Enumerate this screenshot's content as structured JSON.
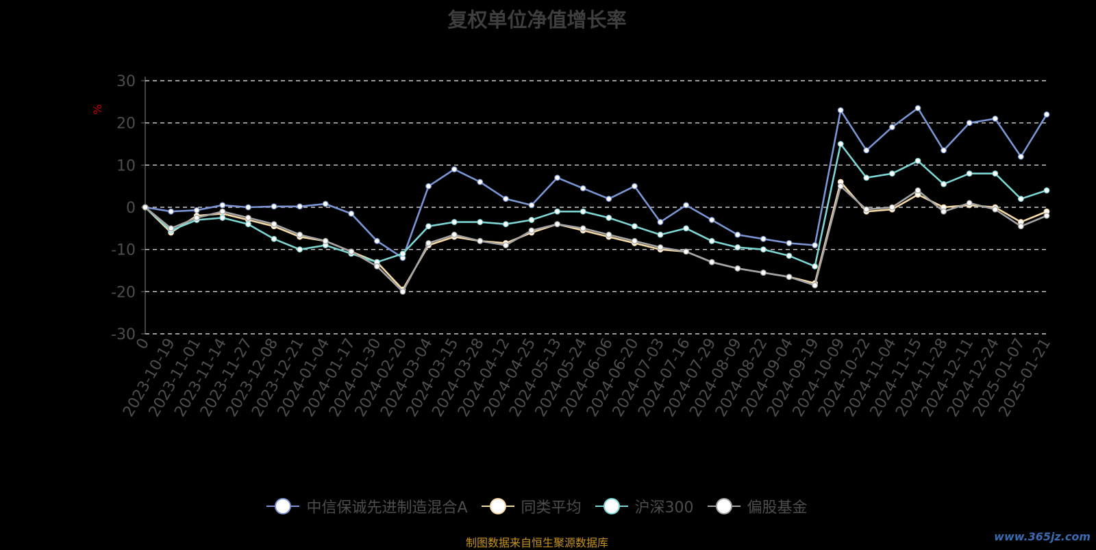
{
  "title": "复权单位净值增长率",
  "source_note": "制图数据来自恒生聚源数据库",
  "watermark": "www.365jz.com",
  "colors": {
    "background": "#000000",
    "grid": "#d0d0d0",
    "axis": "#5a5a5a",
    "tick_text": "#4e4e4e",
    "ylabel": "#cc0000"
  },
  "chart_data": {
    "type": "line",
    "title": "复权单位净值增长率",
    "ylabel": "%",
    "ylim": [
      -30,
      30
    ],
    "yticks": [
      30,
      20,
      10,
      0,
      -10,
      -20,
      -30
    ],
    "grid": true,
    "legend_position": "bottom",
    "x": [
      "0",
      "2023-10-19",
      "2023-11-01",
      "2023-11-14",
      "2023-11-27",
      "2023-12-08",
      "2023-12-21",
      "2024-01-04",
      "2024-01-17",
      "2024-01-30",
      "2024-02-20",
      "2024-03-04",
      "2024-03-15",
      "2024-03-28",
      "2024-04-12",
      "2024-04-25",
      "2024-05-13",
      "2024-05-24",
      "2024-06-06",
      "2024-06-20",
      "2024-07-03",
      "2024-07-16",
      "2024-07-29",
      "2024-08-09",
      "2024-08-22",
      "2024-09-04",
      "2024-09-19",
      "2024-10-09",
      "2024-10-22",
      "2024-11-04",
      "2024-11-15",
      "2024-11-28",
      "2024-12-11",
      "2024-12-24",
      "2025-01-07",
      "2025-01-21"
    ],
    "series": [
      {
        "name": "中信保诚先进制造混合A",
        "color": "#7b96d4",
        "values": [
          0,
          -1,
          -0.7,
          0.5,
          0,
          0.2,
          0.2,
          0.8,
          -1.5,
          -8,
          -12,
          5,
          9,
          6,
          2,
          0.5,
          7,
          4.5,
          2,
          5,
          -3.5,
          0.5,
          -3,
          -6.5,
          -7.5,
          -8.5,
          -9,
          23,
          13.5,
          19,
          23.5,
          13.5,
          20,
          21,
          12,
          22
        ]
      },
      {
        "name": "同类平均",
        "color": "#f5d9a6",
        "values": [
          0,
          -6,
          -2,
          -1.5,
          -3,
          -4.5,
          -7,
          -8,
          -10.5,
          -13,
          -19.5,
          -9,
          -7,
          -8,
          -8.5,
          -6,
          -4,
          -5.5,
          -7,
          -8.5,
          -10,
          -10.5,
          -13,
          -14.5,
          -15.5,
          -16.5,
          -18,
          6,
          -1,
          -0.5,
          3,
          0,
          0.5,
          0,
          -3.5,
          -1
        ]
      },
      {
        "name": "沪深300",
        "color": "#7ed6d4",
        "values": [
          0,
          -5.5,
          -3,
          -2.5,
          -4,
          -7.5,
          -10,
          -9,
          -11,
          -13,
          -11,
          -4.5,
          -3.5,
          -3.5,
          -4,
          -3,
          -1,
          -1,
          -2.5,
          -4.5,
          -6.5,
          -5,
          -8,
          -9.5,
          -10,
          -11.5,
          -14,
          15,
          7,
          8,
          11,
          5.5,
          8,
          8,
          2,
          4
        ]
      },
      {
        "name": "偏股基金",
        "color": "#a4a4a4",
        "values": [
          0,
          -5,
          -2.5,
          -1,
          -2.5,
          -4,
          -6.5,
          -8,
          -10.5,
          -14,
          -20,
          -8.5,
          -6.5,
          -8,
          -9,
          -5.5,
          -4,
          -5,
          -6.5,
          -8,
          -9.5,
          -10.5,
          -13,
          -14.5,
          -15.5,
          -16.5,
          -18.5,
          5,
          -0.5,
          0,
          4,
          -1,
          1,
          -0.5,
          -4.5,
          -2
        ]
      }
    ]
  }
}
